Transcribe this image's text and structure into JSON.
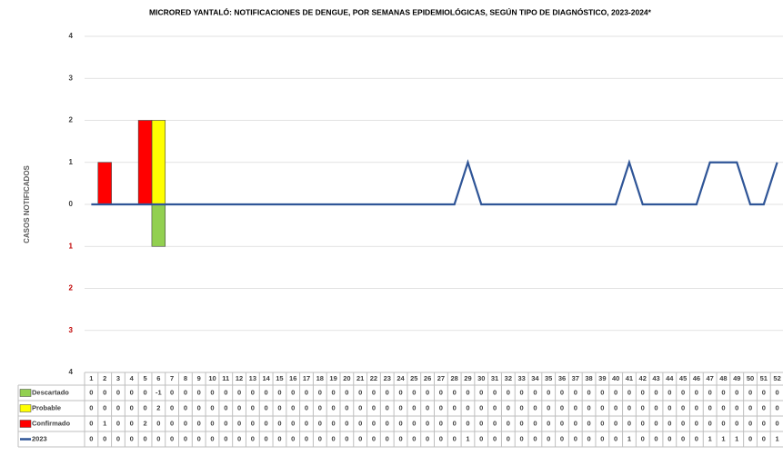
{
  "chart_data": {
    "type": "bar",
    "title": "MICRORED YANTALÓ: NOTIFICACIONES DE DENGUE, POR SEMANAS EPIDEMIOLÓGICAS, SEGÚN TIPO DE DIAGNÓSTICO, 2023-2024*",
    "y_label": "CASOS NOTIFICADOS",
    "categories": [
      "1",
      "2",
      "3",
      "4",
      "5",
      "6",
      "7",
      "8",
      "9",
      "10",
      "11",
      "12",
      "13",
      "14",
      "15",
      "16",
      "17",
      "18",
      "19",
      "20",
      "21",
      "22",
      "23",
      "24",
      "25",
      "26",
      "27",
      "28",
      "29",
      "30",
      "31",
      "32",
      "33",
      "34",
      "35",
      "36",
      "37",
      "38",
      "39",
      "40",
      "41",
      "42",
      "43",
      "44",
      "45",
      "46",
      "47",
      "48",
      "49",
      "50",
      "51",
      "52"
    ],
    "series": [
      {
        "name": "Descartado",
        "color": "#92d050",
        "kind": "bar",
        "values": [
          0,
          0,
          0,
          0,
          0,
          -1,
          0,
          0,
          0,
          0,
          0,
          0,
          0,
          0,
          0,
          0,
          0,
          0,
          0,
          0,
          0,
          0,
          0,
          0,
          0,
          0,
          0,
          0,
          0,
          0,
          0,
          0,
          0,
          0,
          0,
          0,
          0,
          0,
          0,
          0,
          0,
          0,
          0,
          0,
          0,
          0,
          0,
          0,
          0,
          0,
          0,
          0
        ]
      },
      {
        "name": "Probable",
        "color": "#ffff00",
        "kind": "bar",
        "values": [
          0,
          0,
          0,
          0,
          0,
          2,
          0,
          0,
          0,
          0,
          0,
          0,
          0,
          0,
          0,
          0,
          0,
          0,
          0,
          0,
          0,
          0,
          0,
          0,
          0,
          0,
          0,
          0,
          0,
          0,
          0,
          0,
          0,
          0,
          0,
          0,
          0,
          0,
          0,
          0,
          0,
          0,
          0,
          0,
          0,
          0,
          0,
          0,
          0,
          0,
          0,
          0
        ]
      },
      {
        "name": "Confirmado",
        "color": "#ff0000",
        "kind": "bar",
        "values": [
          0,
          1,
          0,
          0,
          2,
          0,
          0,
          0,
          0,
          0,
          0,
          0,
          0,
          0,
          0,
          0,
          0,
          0,
          0,
          0,
          0,
          0,
          0,
          0,
          0,
          0,
          0,
          0,
          0,
          0,
          0,
          0,
          0,
          0,
          0,
          0,
          0,
          0,
          0,
          0,
          0,
          0,
          0,
          0,
          0,
          0,
          0,
          0,
          0,
          0,
          0,
          0
        ]
      },
      {
        "name": "2023",
        "color": "#2f5597",
        "kind": "line",
        "values": [
          0,
          0,
          0,
          0,
          0,
          0,
          0,
          0,
          0,
          0,
          0,
          0,
          0,
          0,
          0,
          0,
          0,
          0,
          0,
          0,
          0,
          0,
          0,
          0,
          0,
          0,
          0,
          0,
          1,
          0,
          0,
          0,
          0,
          0,
          0,
          0,
          0,
          0,
          0,
          0,
          1,
          0,
          0,
          0,
          0,
          0,
          1,
          1,
          1,
          0,
          0,
          1
        ]
      }
    ],
    "ylim": [
      -4,
      4
    ],
    "yticks": [
      {
        "value": -4,
        "label": "4"
      },
      {
        "value": -3,
        "label": "3"
      },
      {
        "value": -2,
        "label": "2"
      },
      {
        "value": -1,
        "label": "1"
      },
      0,
      1,
      2,
      3,
      4
    ],
    "negative_tick_color": "#c00000",
    "grid": true
  }
}
